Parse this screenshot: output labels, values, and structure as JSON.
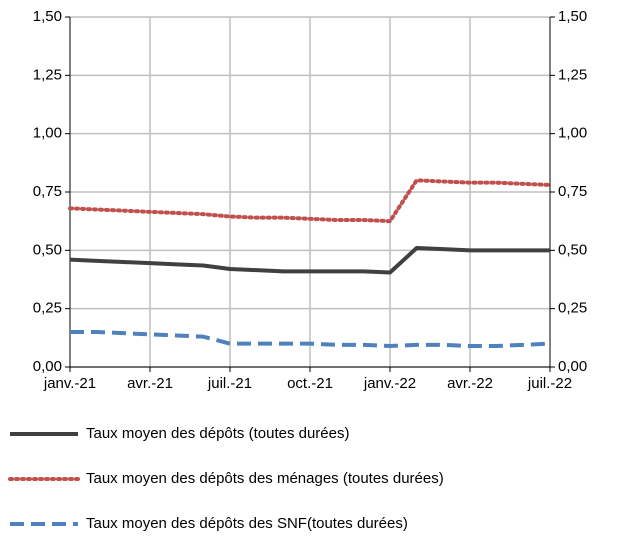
{
  "chart_data": {
    "type": "line",
    "categories": [
      "janv.-21",
      null,
      null,
      "avr.-21",
      null,
      null,
      "juil.-21",
      null,
      null,
      "oct.-21",
      null,
      null,
      "janv.-22",
      null,
      null,
      "avr.-22",
      null,
      null,
      "juil.-22"
    ],
    "series": [
      {
        "name": "Taux moyen des dépôts (toutes durées)",
        "color": "#404040",
        "style": "solid",
        "values": [
          0.46,
          0.455,
          0.45,
          0.445,
          0.44,
          0.435,
          0.42,
          0.415,
          0.41,
          0.41,
          0.41,
          0.41,
          0.405,
          0.51,
          0.505,
          0.5,
          0.5,
          0.5,
          0.5
        ]
      },
      {
        "name": "Taux moyen des dépôts des ménages (toutes durées)",
        "color": "#c0504d",
        "style": "dotted",
        "values": [
          0.68,
          0.675,
          0.67,
          0.665,
          0.66,
          0.655,
          0.645,
          0.64,
          0.64,
          0.635,
          0.63,
          0.63,
          0.625,
          0.8,
          0.795,
          0.79,
          0.79,
          0.785,
          0.78
        ]
      },
      {
        "name": "Taux moyen des dépôts des SNF(toutes durées)",
        "color": "#4f81bd",
        "style": "dashed",
        "values": [
          0.15,
          0.15,
          0.145,
          0.14,
          0.135,
          0.13,
          0.1,
          0.1,
          0.1,
          0.1,
          0.095,
          0.095,
          0.09,
          0.095,
          0.095,
          0.09,
          0.09,
          0.095,
          0.1
        ]
      }
    ],
    "ylim": [
      0,
      1.5
    ],
    "yticks": [
      {
        "value": 0,
        "label": "0,00"
      },
      {
        "value": 0.25,
        "label": "0,25"
      },
      {
        "value": 0.5,
        "label": "0,50"
      },
      {
        "value": 0.75,
        "label": "0,75"
      },
      {
        "value": 1,
        "label": "1,00"
      },
      {
        "value": 1.25,
        "label": "1,25"
      },
      {
        "value": 1.5,
        "label": "1,50"
      }
    ],
    "y2lim": [
      0,
      1.5
    ],
    "y2ticks": [
      {
        "value": 0,
        "label": "0,00"
      },
      {
        "value": 0.25,
        "label": "0,25"
      },
      {
        "value": 0.5,
        "label": "0,50"
      },
      {
        "value": 0.75,
        "label": "0,75"
      },
      {
        "value": 1,
        "label": "1,00"
      },
      {
        "value": 1.25,
        "label": "1,25"
      },
      {
        "value": 1.5,
        "label": "1,50"
      }
    ],
    "grid": true
  }
}
